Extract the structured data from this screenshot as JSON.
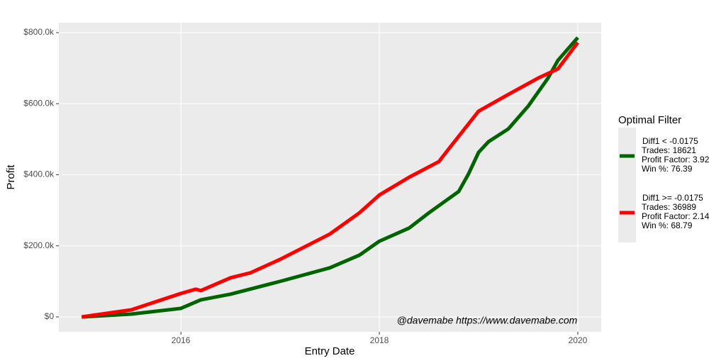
{
  "chart_data": {
    "type": "line",
    "x_label": "Entry Date",
    "y_label": "Profit",
    "annotation": "@davemabe https://www.davemabe.com",
    "legend_title": "Optimal Filter",
    "legend_position": "right",
    "grid": true,
    "xlim": [
      2014.77,
      2020.236
    ],
    "ylim": [
      -41900,
      827900
    ],
    "xticks": [
      2016,
      2018,
      2020
    ],
    "yticks": [
      {
        "value": 0,
        "label": "$0"
      },
      {
        "value": 200000,
        "label": "$200.0k"
      },
      {
        "value": 400000,
        "label": "$400.0k"
      },
      {
        "value": 600000,
        "label": "$600.0k"
      },
      {
        "value": 800000,
        "label": "$800.0k"
      }
    ],
    "series": [
      {
        "name": "Diff1 < -0.0175",
        "details": [
          "Trades: 18621",
          "Profit Factor: 3.92",
          "Win %: 76.39"
        ],
        "color": "#006400",
        "x": [
          2015.0,
          2015.5,
          2016.0,
          2016.2,
          2016.5,
          2017.0,
          2017.5,
          2017.8,
          2018.0,
          2018.3,
          2018.5,
          2018.8,
          2018.9,
          2019.0,
          2019.1,
          2019.3,
          2019.5,
          2019.7,
          2019.8,
          2020.0
        ],
        "values": [
          0,
          8000,
          24000,
          48000,
          64000,
          100000,
          138000,
          174000,
          213000,
          250000,
          293000,
          353000,
          403000,
          463000,
          493000,
          529000,
          593000,
          672000,
          722000,
          786000
        ]
      },
      {
        "name": "Diff1 >= -0.0175",
        "details": [
          "Trades: 36989",
          "Profit Factor: 2.14",
          "Win %: 68.79"
        ],
        "color": "#ff0000",
        "x": [
          2015.0,
          2015.5,
          2016.0,
          2016.15,
          2016.2,
          2016.5,
          2016.7,
          2017.0,
          2017.5,
          2017.8,
          2018.0,
          2018.3,
          2018.6,
          2018.7,
          2019.0,
          2019.3,
          2019.6,
          2019.8,
          2020.0
        ],
        "values": [
          0,
          20000,
          66000,
          78000,
          74000,
          110000,
          124000,
          162000,
          233000,
          293000,
          343000,
          393000,
          437000,
          473000,
          579000,
          626000,
          672000,
          698000,
          772000
        ]
      }
    ]
  }
}
